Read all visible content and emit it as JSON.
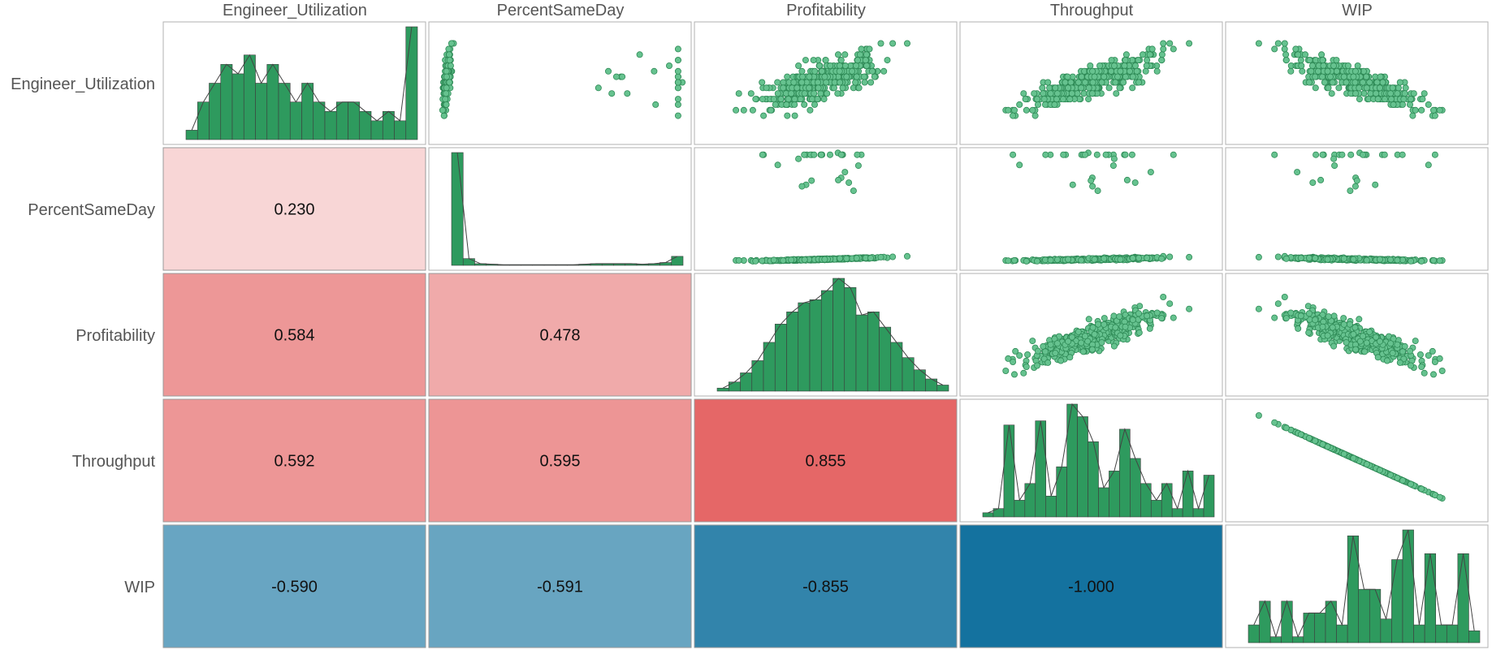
{
  "chart_data": {
    "type": "scatter-matrix",
    "variables": [
      "Engineer_Utilization",
      "PercentSameDay",
      "Profitability",
      "Throughput",
      "WIP"
    ],
    "correlations": {
      "PercentSameDay|Engineer_Utilization": "0.230",
      "Profitability|Engineer_Utilization": "0.584",
      "Profitability|PercentSameDay": "0.478",
      "Throughput|Engineer_Utilization": "0.592",
      "Throughput|PercentSameDay": "0.595",
      "Throughput|Profitability": "0.855",
      "WIP|Engineer_Utilization": "-0.590",
      "WIP|PercentSameDay": "-0.591",
      "WIP|Profitability": "-0.855",
      "WIP|Throughput": "-1.000"
    },
    "lower_panel": "correlation heatmap (red positive, blue negative)",
    "diagonal_panel": "histogram with frequency polygon",
    "upper_panel": "scatter",
    "histograms": {
      "Engineer_Utilization": [
        1,
        4,
        6,
        8,
        7,
        9,
        6,
        8,
        6,
        4,
        6,
        4,
        3,
        4,
        4,
        3,
        2,
        3,
        2,
        12
      ],
      "PercentSameDay": [
        20,
        1.2,
        0.3,
        0.2,
        0.1,
        0.1,
        0.1,
        0.1,
        0.1,
        0.1,
        0.1,
        0.2,
        0.3,
        0.3,
        0.3,
        0.3,
        0.2,
        0.3,
        0.5,
        1.6
      ],
      "Profitability": [
        1,
        3,
        6,
        10,
        16,
        22,
        26,
        29,
        30,
        33,
        37,
        34,
        25,
        26,
        21,
        16,
        11,
        7,
        4,
        2
      ],
      "Throughput": [
        1,
        2,
        22,
        4,
        8,
        23,
        5,
        12,
        27,
        24,
        18,
        7,
        11,
        21,
        14,
        8,
        4,
        8,
        2,
        11,
        2,
        10
      ],
      "WIP": [
        3,
        7,
        1,
        7,
        1,
        5,
        5,
        7,
        3,
        18,
        9,
        9,
        4,
        14,
        19,
        3,
        15,
        3,
        3,
        15,
        2
      ]
    },
    "colors": {
      "hist_fill": "#2e9a5e",
      "point_fill": "#66c28f",
      "point_edge": "#2e8a56",
      "positive": "#e04a4a",
      "negative": "#0f6f9d"
    }
  }
}
